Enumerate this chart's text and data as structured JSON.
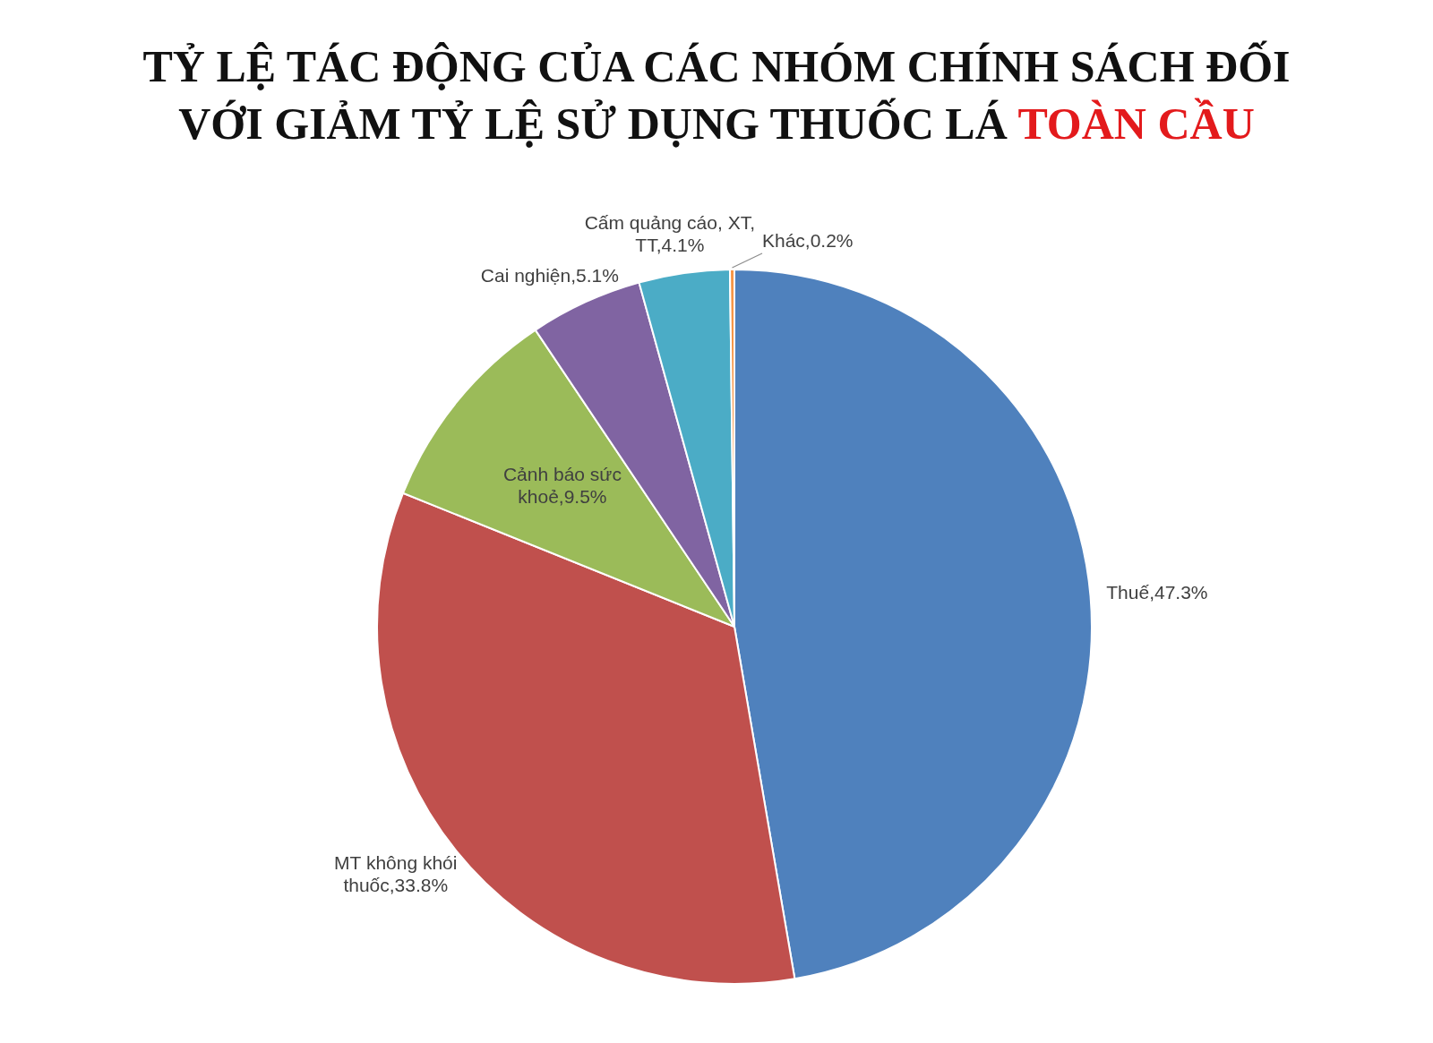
{
  "chart_data": {
    "type": "pie",
    "title": "TỶ LỆ TÁC ĐỘNG CỦA CÁC NHÓM CHÍNH SÁCH ĐỐI VỚI GIẢM TỶ LỆ SỬ DỤNG THUỐC LÁ TOÀN CẦU",
    "categories": [
      "Thuế",
      "MT không khói thuốc",
      "Cảnh báo sức khoẻ",
      "Cai nghiện",
      "Cấm quảng cáo, XT, TT",
      "Khác"
    ],
    "values": [
      47.3,
      33.8,
      9.5,
      5.1,
      4.1,
      0.2
    ],
    "colors": [
      "#4f81bd",
      "#c0504d",
      "#9bbb59",
      "#8064a2",
      "#4bacc6",
      "#f79646"
    ],
    "value_labels": [
      "47.3%",
      "33.8%",
      "9.5%",
      "5.1%",
      "4.1%",
      "0.2%"
    ],
    "legend": false
  }
}
